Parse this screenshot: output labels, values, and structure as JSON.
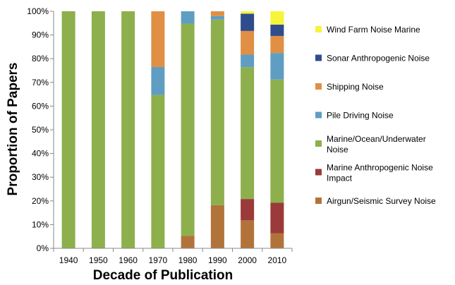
{
  "chart_data": {
    "type": "bar",
    "stacked": true,
    "xlabel": "Decade of Publication",
    "ylabel": "Proportion of Papers",
    "categories": [
      "1940",
      "1950",
      "1960",
      "1970",
      "1980",
      "1990",
      "2000",
      "2010"
    ],
    "ylim": [
      0,
      100
    ],
    "y_ticks": [
      "0%",
      "10%",
      "20%",
      "30%",
      "40%",
      "50%",
      "60%",
      "70%",
      "80%",
      "90%",
      "100%"
    ],
    "grid": false,
    "legend_position": "right",
    "legend_order": [
      "Wind Farm Noise Marine",
      "Sonar Anthropogenic Noise",
      "Shipping Noise",
      "Pile Driving Noise",
      "Marine/Ocean/Underwater Noise",
      "Marine Anthropogenic Noise Impact",
      "Airgun/Seismic Survey Noise"
    ],
    "series": [
      {
        "name": "Airgun/Seismic Survey Noise",
        "color": "#b2733a",
        "values": [
          0,
          0,
          0,
          0,
          5.3,
          18.2,
          11.8,
          6.4
        ]
      },
      {
        "name": "Marine Anthropogenic Noise Impact",
        "color": "#9b3a3a",
        "values": [
          0,
          0,
          0,
          0,
          0,
          0,
          9,
          12.8
        ]
      },
      {
        "name": "Marine/Ocean/Underwater Noise",
        "color": "#8db04c",
        "values": [
          100,
          100,
          100,
          64.7,
          89.5,
          78.3,
          55.6,
          52
        ]
      },
      {
        "name": "Pile Driving Noise",
        "color": "#5f9ec2",
        "values": [
          0,
          0,
          0,
          11.8,
          5.2,
          1.5,
          5.3,
          11.2
        ]
      },
      {
        "name": "Shipping Noise",
        "color": "#e08f44",
        "values": [
          0,
          0,
          0,
          23.5,
          0,
          2,
          10,
          7.2
        ]
      },
      {
        "name": "Sonar Anthropogenic Noise",
        "color": "#2f4d8c",
        "values": [
          0,
          0,
          0,
          0,
          0,
          0,
          7.3,
          4.8
        ]
      },
      {
        "name": "Wind Farm Noise Marine",
        "color": "#f5f53a",
        "values": [
          0,
          0,
          0,
          0,
          0,
          0,
          1,
          5.6
        ]
      }
    ]
  }
}
